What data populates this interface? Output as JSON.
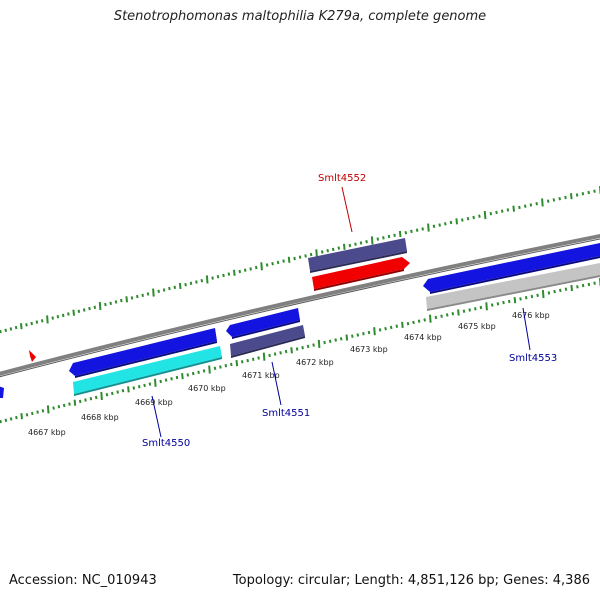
{
  "title": "Stenotrophomonas maltophilia K279a, complete genome",
  "footer": {
    "accession": "Accession: NC_010943",
    "summary": "Topology: circular; Length: 4,851,126 bp; Genes: 4,386"
  },
  "colors": {
    "backbone": "#808080",
    "ticks": "#2e8b2e",
    "gene_blue": "#1414e0",
    "gene_navy": "#4b4a8c",
    "gene_red": "#f00000",
    "gene_cyan": "#22e4e4",
    "gene_grey": "#c4c4c4",
    "label_red": "#c00000",
    "label_blue": "#000099"
  },
  "kbp_labels": [
    "4667 kbp",
    "4668 kbp",
    "4669 kbp",
    "4670 kbp",
    "4671 kbp",
    "4672 kbp",
    "4673 kbp",
    "4674 kbp",
    "4675 kbp",
    "4676 kbp"
  ],
  "gene_labels": {
    "smlt4552": "Smlt4552",
    "smlt4550": "Smlt4550",
    "smlt4551": "Smlt4551",
    "smlt4553": "Smlt4553"
  }
}
